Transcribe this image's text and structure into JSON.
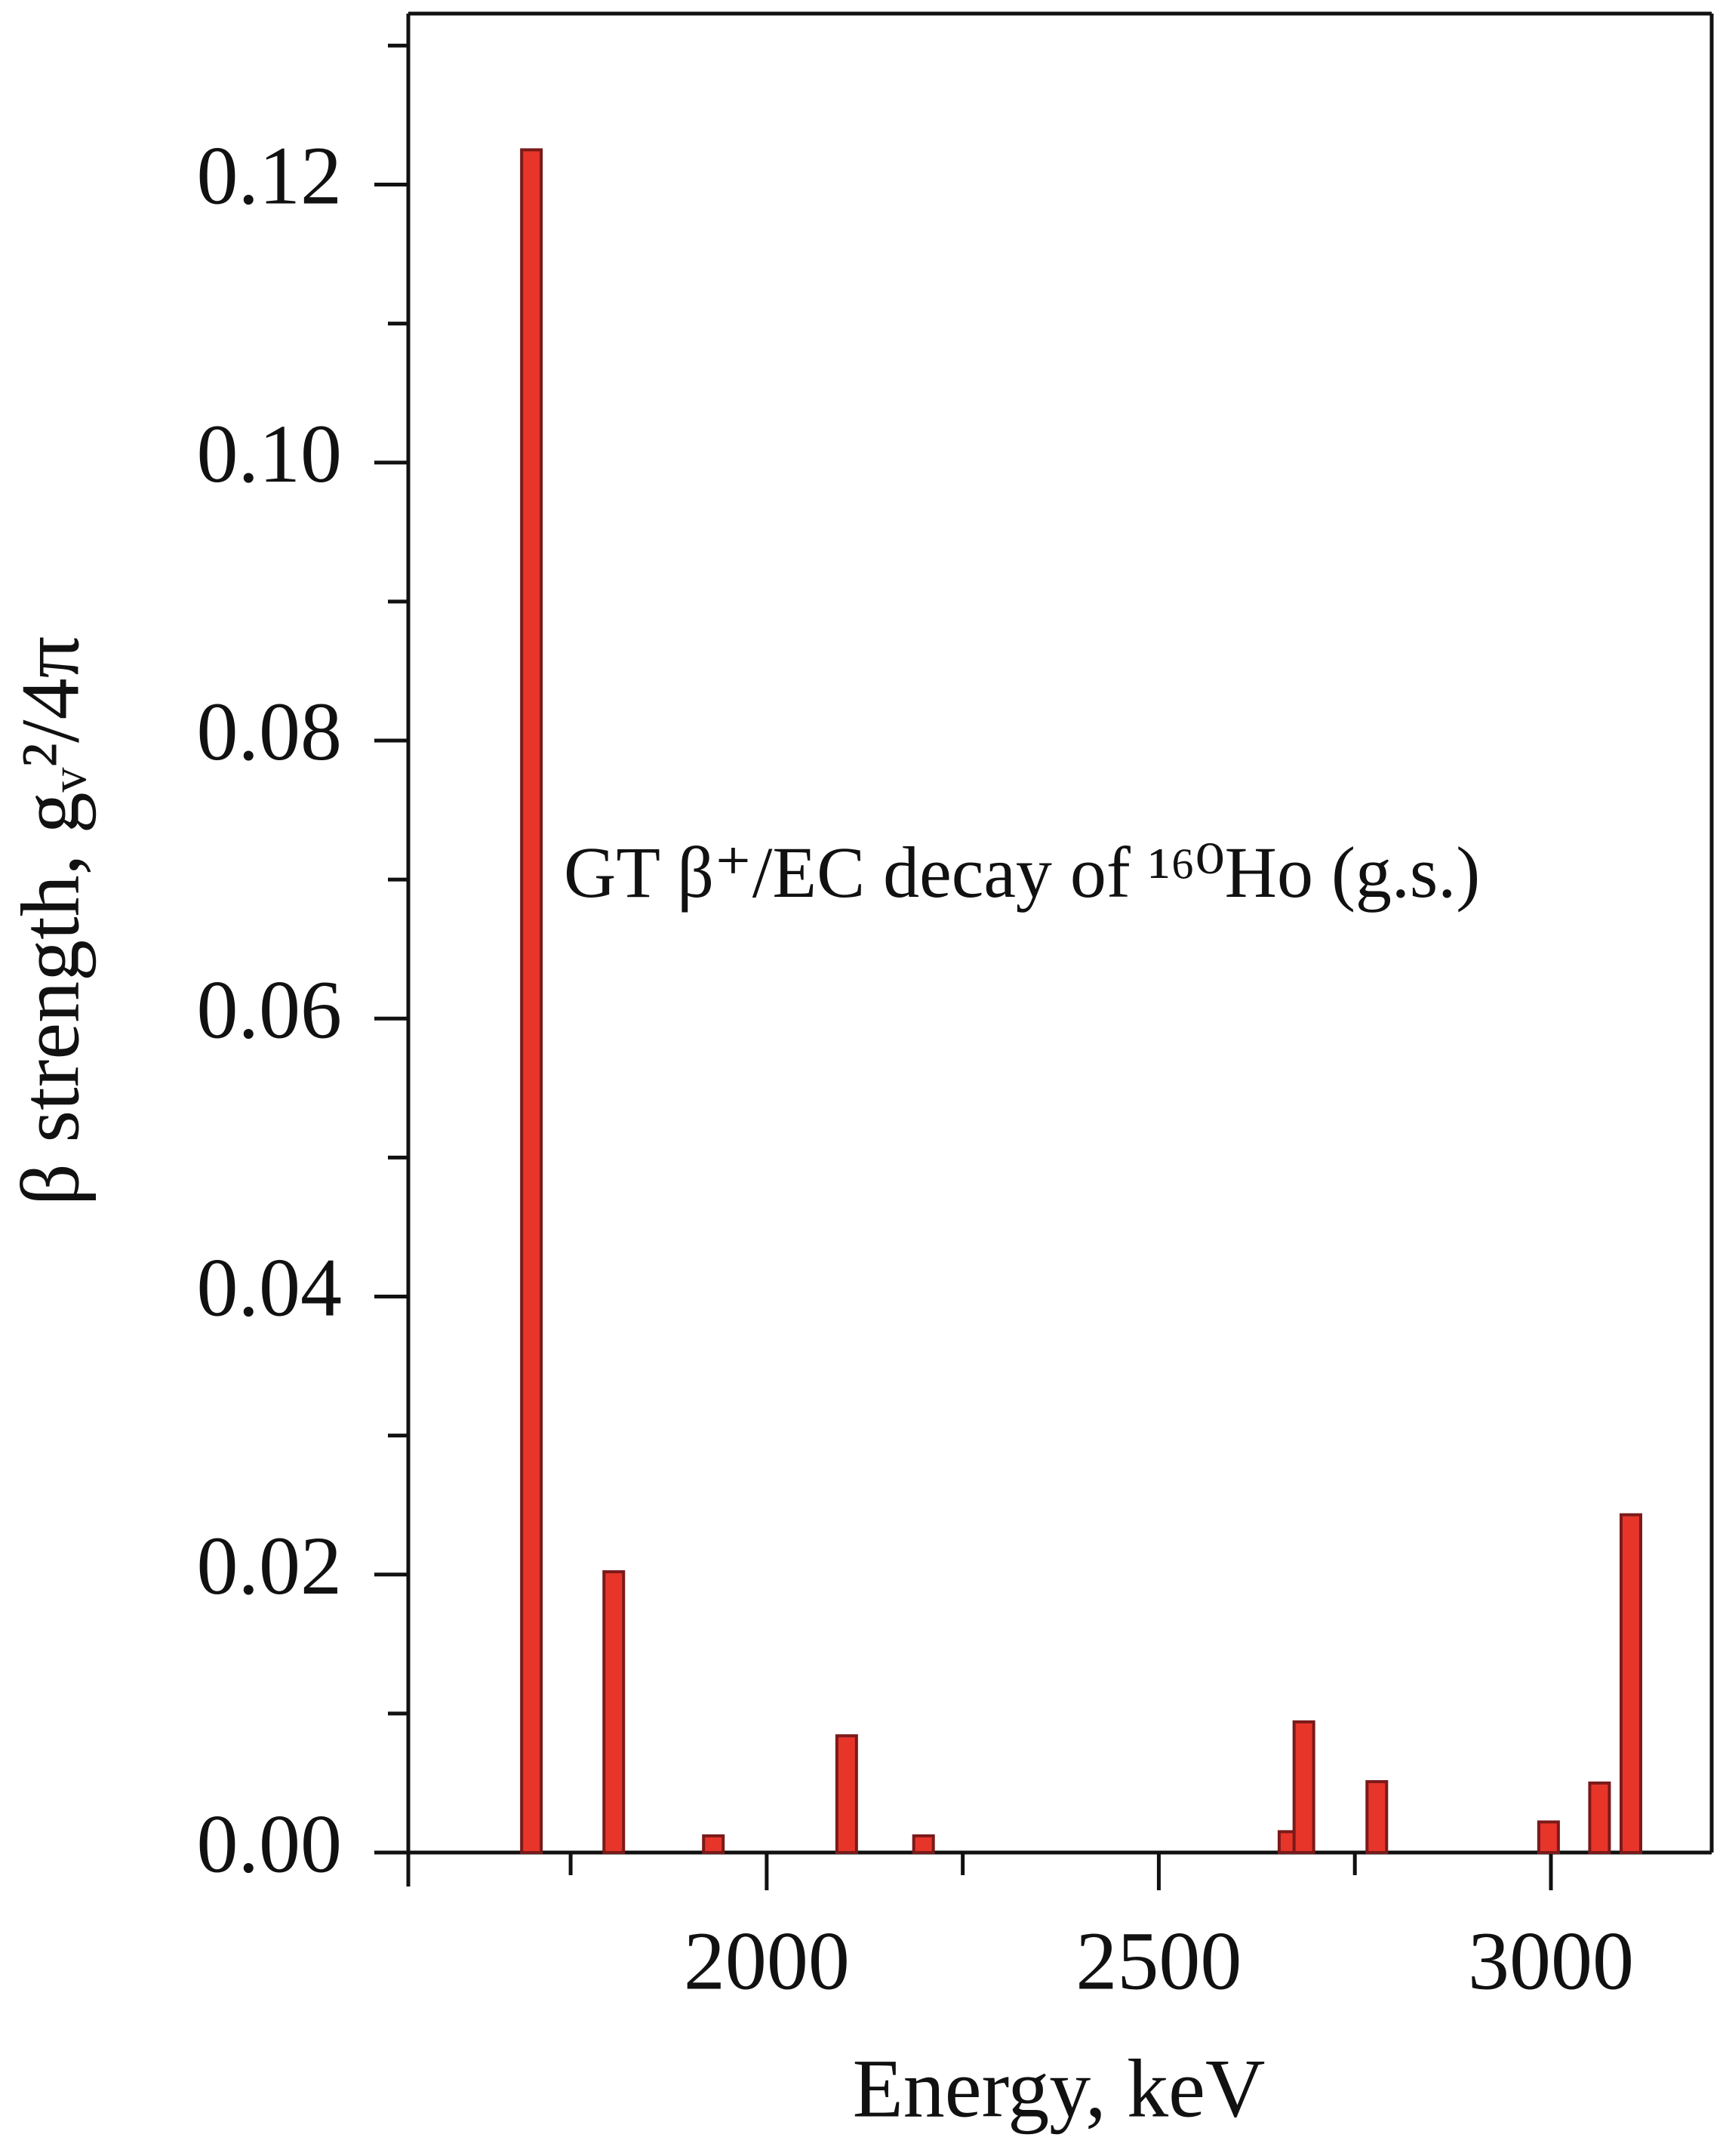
{
  "chart_data": {
    "type": "bar",
    "ylabel": "β strength, gᵥ²/4π",
    "xlabel": "Energy, keV",
    "annotation": "GT β⁺/EC decay of ¹⁶⁰Ho (g.s.)",
    "x": [
      1700,
      1805,
      1932,
      2102,
      2200,
      2666,
      2685,
      2778,
      2997,
      3062,
      3102
    ],
    "values": [
      0.1225,
      0.0202,
      0.0012,
      0.0084,
      0.0012,
      0.0015,
      0.0094,
      0.0051,
      0.0022,
      0.005,
      0.0243
    ],
    "color": "#e8352a",
    "edgecolor": "#7a1a1a",
    "xlim": [
      1543,
      3205
    ],
    "ylim": [
      0,
      0.1323
    ],
    "xticks": [
      2000,
      2500,
      3000
    ],
    "xminor_ticks": [
      1750,
      2250,
      2750
    ],
    "yticks": [
      {
        "value": 0,
        "label": "0.00"
      },
      {
        "value": 0.02,
        "label": "0.02"
      },
      {
        "value": 0.04,
        "label": "0.04"
      },
      {
        "value": 0.06,
        "label": "0.06"
      },
      {
        "value": 0.08,
        "label": "0.08"
      },
      {
        "value": 0.1,
        "label": "0.10"
      },
      {
        "value": 0.12,
        "label": "0.12"
      }
    ],
    "yminor_ticks": [
      0.01,
      0.03,
      0.05,
      0.07,
      0.09,
      0.11,
      0.13
    ]
  }
}
